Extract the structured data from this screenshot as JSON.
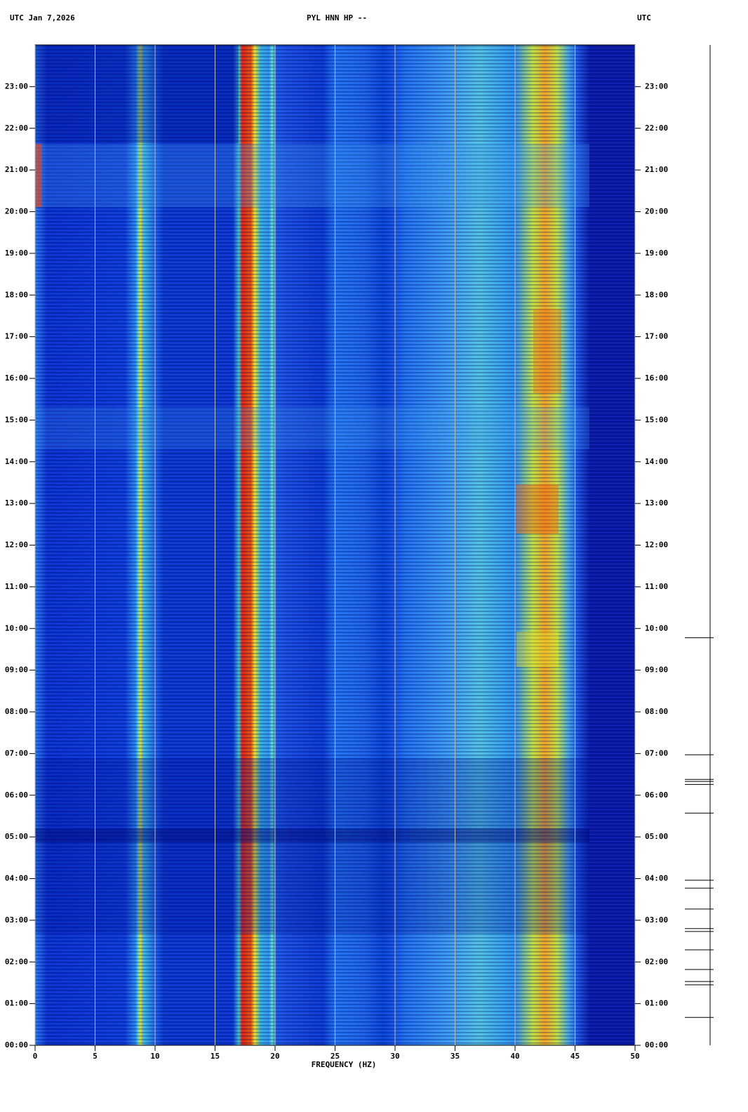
{
  "chart_data": {
    "type": "spectrogram",
    "title_left": "UTC  Jan 7,2026",
    "title": "PYL HNN HP --",
    "title_right": "UTC",
    "xlabel": "FREQUENCY (HZ)",
    "xlim": [
      0,
      50
    ],
    "xticks": [
      0,
      5,
      10,
      15,
      20,
      25,
      30,
      35,
      40,
      45,
      50
    ],
    "ylim": [
      0,
      24
    ],
    "yticks": [
      {
        "value": 0,
        "label": "00:00"
      },
      {
        "value": 1,
        "label": "01:00"
      },
      {
        "value": 2,
        "label": "02:00"
      },
      {
        "value": 3,
        "label": "03:00"
      },
      {
        "value": 4,
        "label": "04:00"
      },
      {
        "value": 5,
        "label": "05:00"
      },
      {
        "value": 6,
        "label": "06:00"
      },
      {
        "value": 7,
        "label": "07:00"
      },
      {
        "value": 8,
        "label": "08:00"
      },
      {
        "value": 9,
        "label": "09:00"
      },
      {
        "value": 10,
        "label": "10:00"
      },
      {
        "value": 11,
        "label": "11:00"
      },
      {
        "value": 12,
        "label": "12:00"
      },
      {
        "value": 13,
        "label": "13:00"
      },
      {
        "value": 14,
        "label": "14:00"
      },
      {
        "value": 15,
        "label": "15:00"
      },
      {
        "value": 16,
        "label": "16:00"
      },
      {
        "value": 17,
        "label": "17:00"
      },
      {
        "value": 18,
        "label": "18:00"
      },
      {
        "value": 19,
        "label": "19:00"
      },
      {
        "value": 20,
        "label": "20:00"
      },
      {
        "value": 21,
        "label": "21:00"
      },
      {
        "value": 22,
        "label": "22:00"
      },
      {
        "value": 23,
        "label": "23:00"
      }
    ],
    "grid": true,
    "events": [
      9.78,
      6.97,
      6.38,
      6.33,
      6.26,
      5.57,
      3.96,
      3.77,
      3.27,
      2.8,
      2.73,
      2.29,
      1.82,
      1.53,
      1.45,
      0.67
    ]
  }
}
